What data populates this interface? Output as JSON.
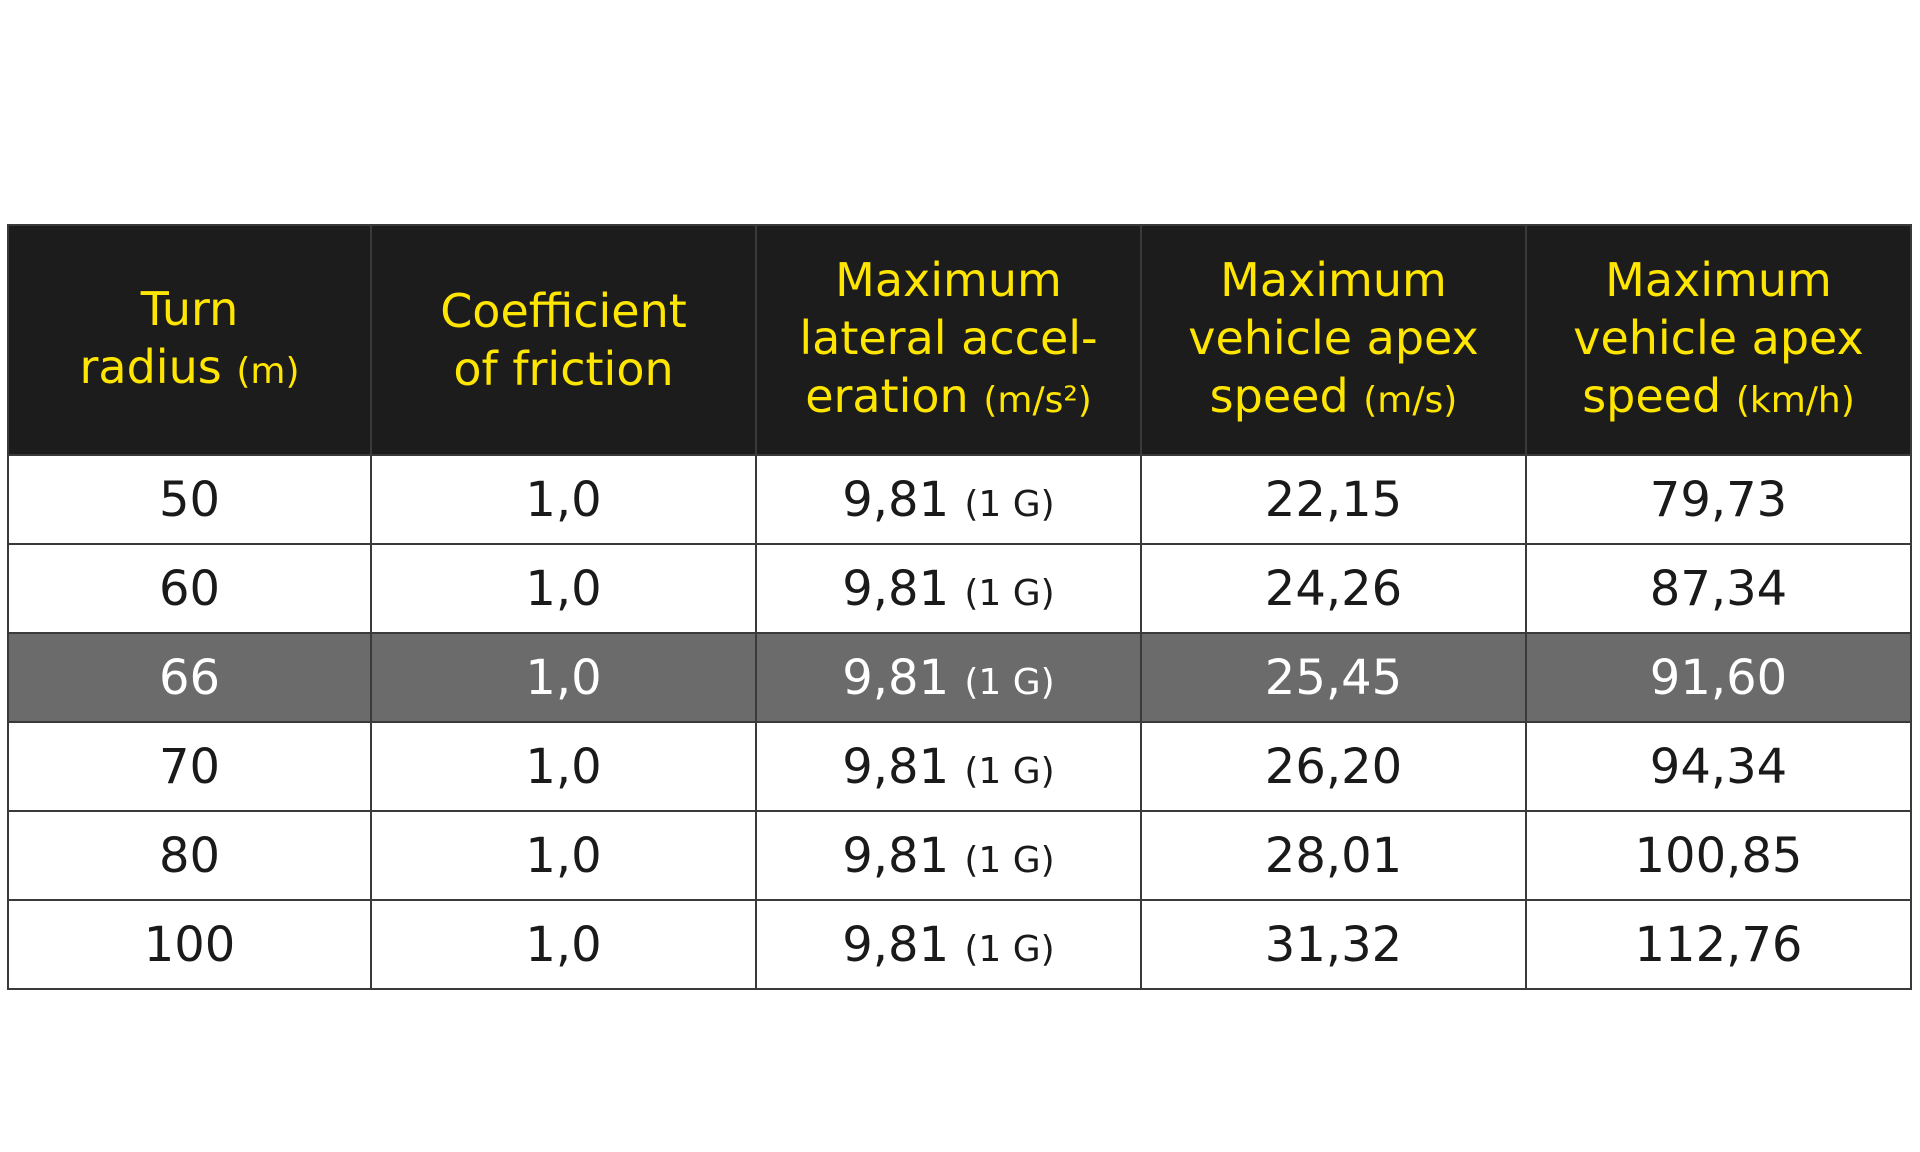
{
  "table": {
    "header": [
      {
        "lines": [
          "Turn",
          "radius"
        ],
        "unit": "(m)"
      },
      {
        "lines": [
          "Coefficient",
          "of friction"
        ]
      },
      {
        "lines": [
          "Maximum",
          "lateral accel-",
          "eration"
        ],
        "unit": "(m/s²)"
      },
      {
        "lines": [
          "Maximum",
          "vehicle apex",
          "speed"
        ],
        "unit": "(m/s)"
      },
      {
        "lines": [
          "Maximum",
          "vehicle apex",
          "speed"
        ],
        "unit": "(km/h)"
      }
    ],
    "rows": [
      {
        "highlighted": false,
        "cells": [
          {
            "value": "50"
          },
          {
            "value": "1,0"
          },
          {
            "value": "9,81",
            "note": "(1 G)"
          },
          {
            "value": "22,15"
          },
          {
            "value": "79,73"
          }
        ]
      },
      {
        "highlighted": false,
        "cells": [
          {
            "value": "60"
          },
          {
            "value": "1,0"
          },
          {
            "value": "9,81",
            "note": "(1 G)"
          },
          {
            "value": "24,26"
          },
          {
            "value": "87,34"
          }
        ]
      },
      {
        "highlighted": true,
        "cells": [
          {
            "value": "66"
          },
          {
            "value": "1,0"
          },
          {
            "value": "9,81",
            "note": "(1 G)"
          },
          {
            "value": "25,45"
          },
          {
            "value": "91,60"
          }
        ]
      },
      {
        "highlighted": false,
        "cells": [
          {
            "value": "70"
          },
          {
            "value": "1,0"
          },
          {
            "value": "9,81",
            "note": "(1 G)"
          },
          {
            "value": "26,20"
          },
          {
            "value": "94,34"
          }
        ]
      },
      {
        "highlighted": false,
        "cells": [
          {
            "value": "80"
          },
          {
            "value": "1,0"
          },
          {
            "value": "9,81",
            "note": "(1 G)"
          },
          {
            "value": "28,01"
          },
          {
            "value": "100,85"
          }
        ]
      },
      {
        "highlighted": false,
        "cells": [
          {
            "value": "100"
          },
          {
            "value": "1,0"
          },
          {
            "value": "9,81",
            "note": "(1 G)"
          },
          {
            "value": "31,32"
          },
          {
            "value": "112,76"
          }
        ]
      }
    ]
  }
}
